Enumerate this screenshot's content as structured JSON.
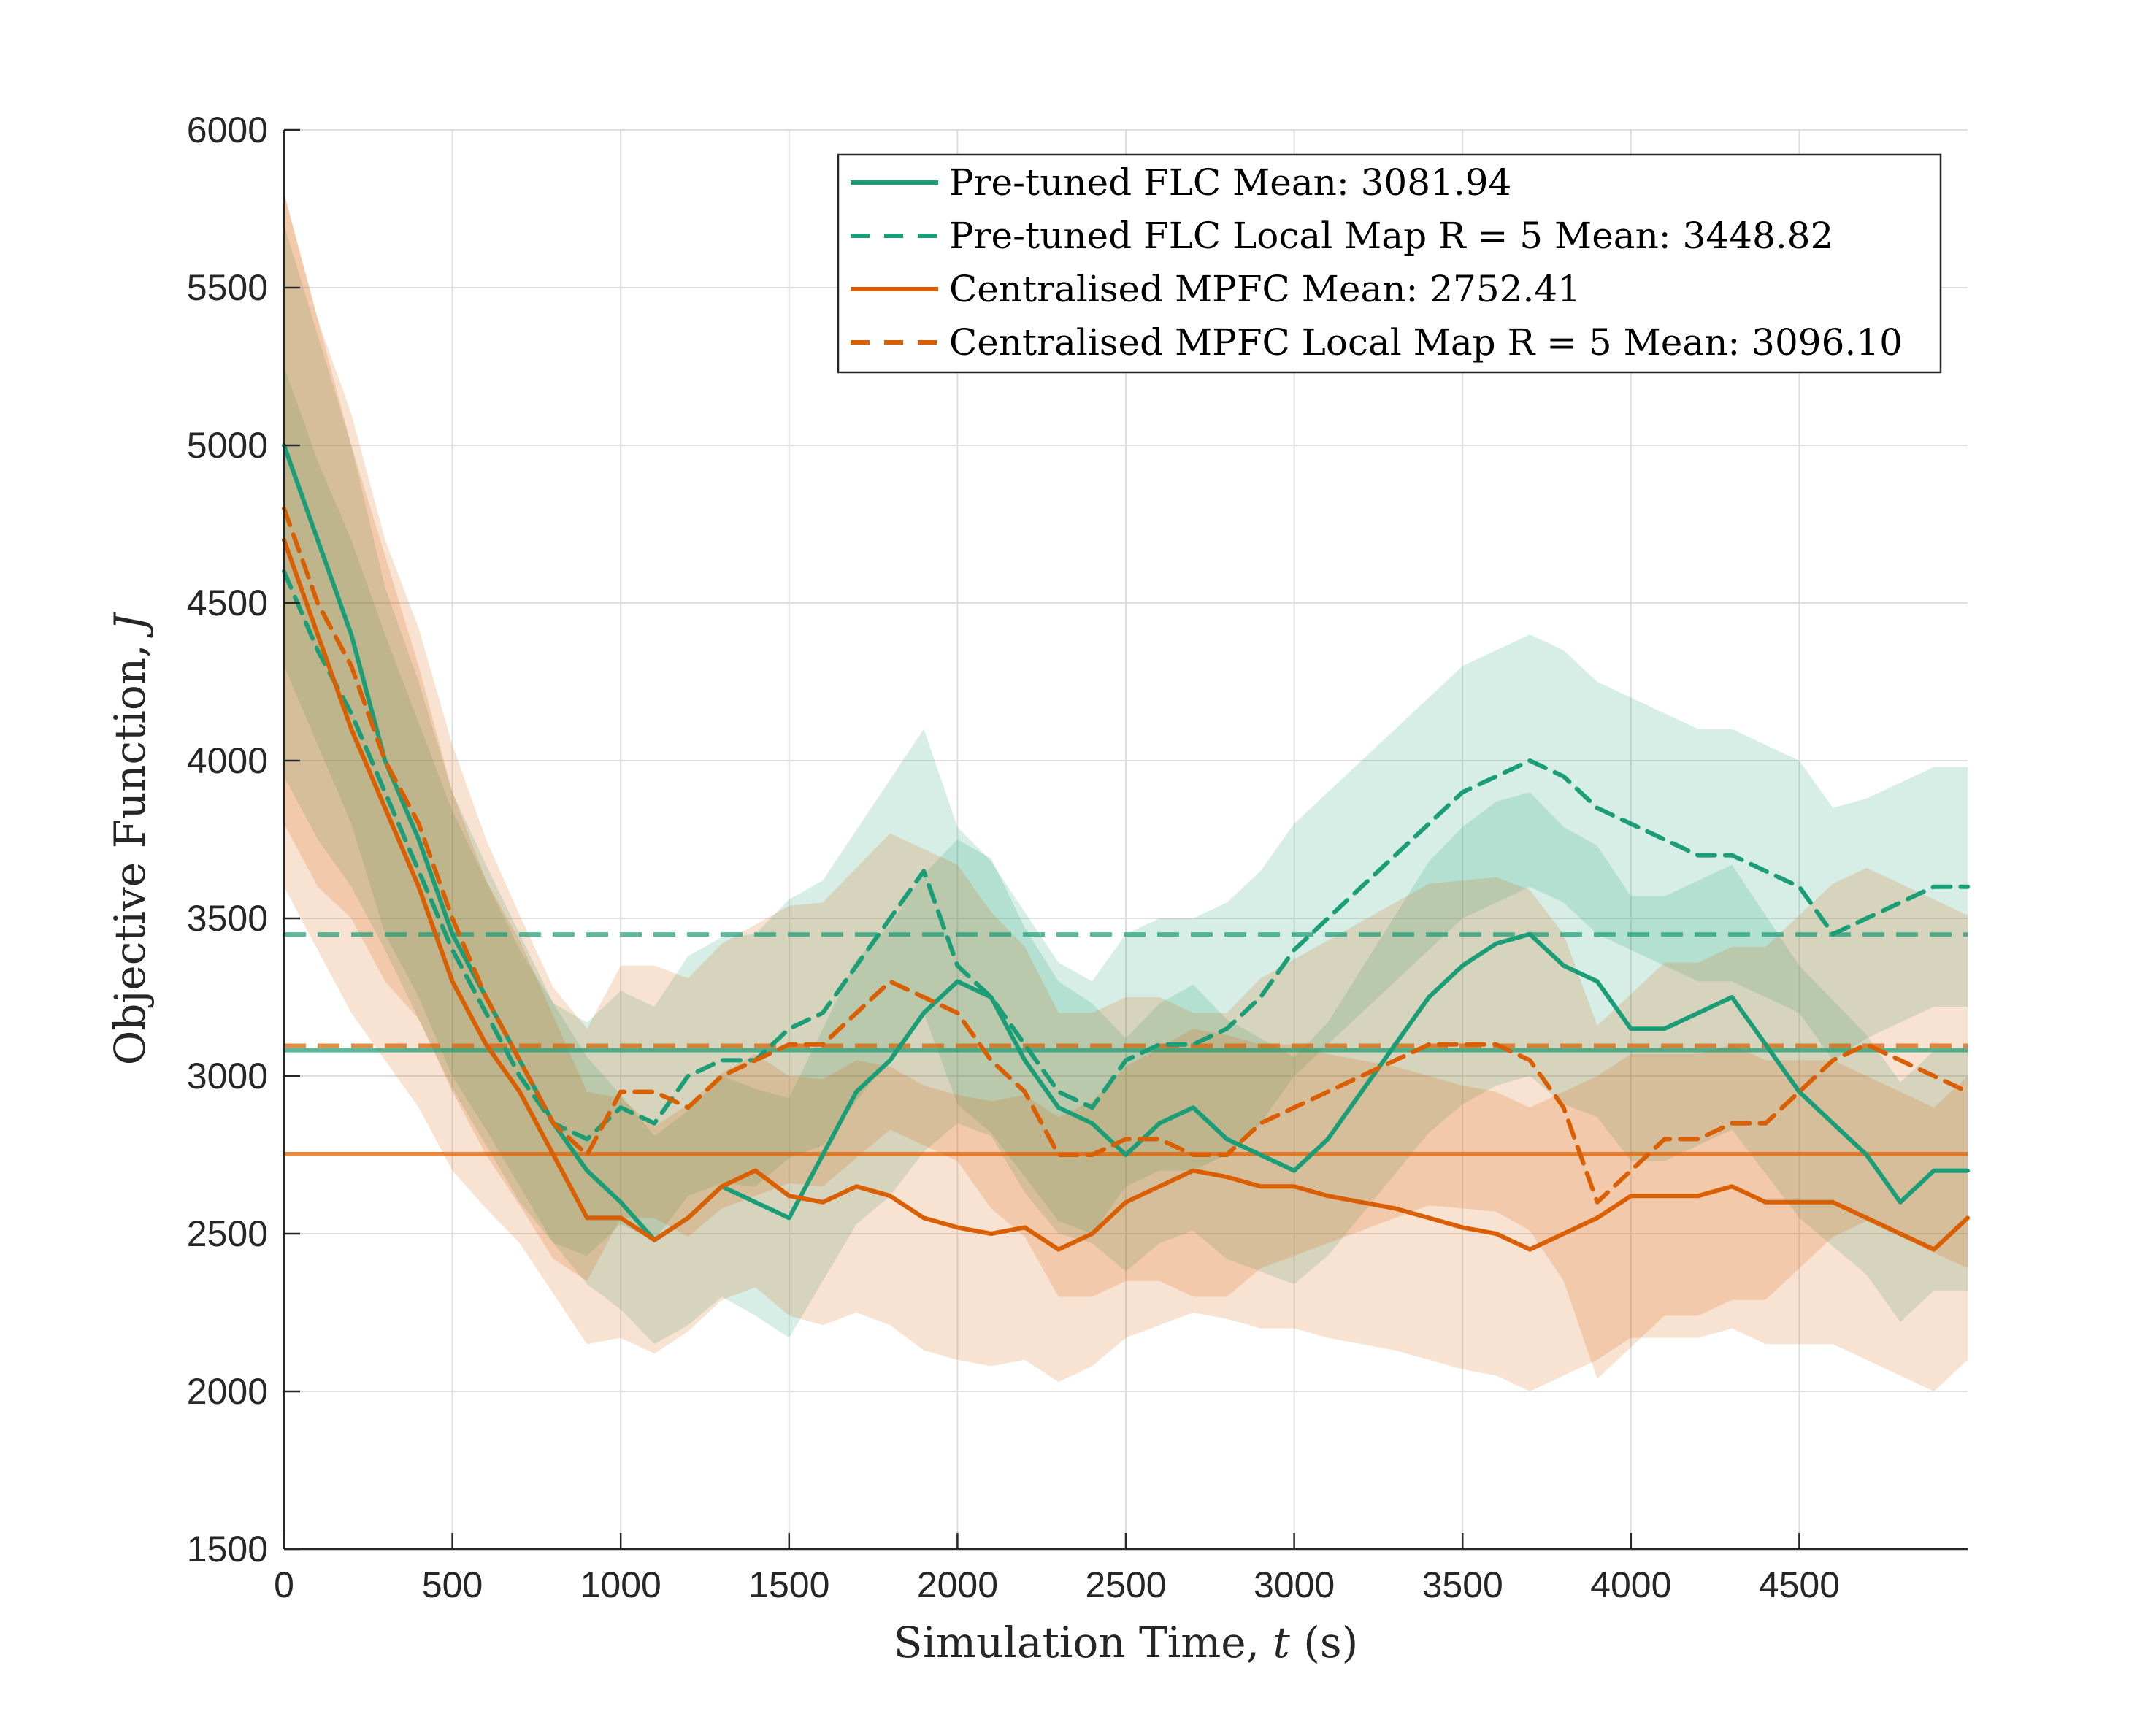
{
  "colors": {
    "flc": "#1b9e77",
    "mpfc": "#d95f02",
    "grid": "#dedede",
    "axis": "#262626"
  },
  "chart_data": {
    "type": "line",
    "xlabel": "Simulation Time, ",
    "xlabel_var": "t",
    "xlabel_unit": " (s)",
    "ylabel": "Objective Function, ",
    "ylabel_var": "J",
    "xlim": [
      0,
      5000
    ],
    "ylim": [
      1500,
      6000
    ],
    "xticks": [
      0,
      500,
      1000,
      1500,
      2000,
      2500,
      3000,
      3500,
      4000,
      4500
    ],
    "yticks": [
      1500,
      2000,
      2500,
      3000,
      3500,
      4000,
      4500,
      5000,
      5500,
      6000
    ],
    "grid": true,
    "legend_position": "top-right",
    "series": [
      {
        "name": "Pre-tuned FLC Mean: 3081.94",
        "color": "flc",
        "style": "solid",
        "mean": 3081.94,
        "x": [
          0,
          100,
          200,
          300,
          400,
          500,
          600,
          700,
          800,
          900,
          1000,
          1100,
          1200,
          1300,
          1400,
          1500,
          1600,
          1700,
          1800,
          1900,
          2000,
          2100,
          2200,
          2300,
          2400,
          2500,
          2600,
          2700,
          2800,
          2900,
          3000,
          3100,
          3200,
          3300,
          3400,
          3500,
          3600,
          3700,
          3800,
          3900,
          4000,
          4100,
          4200,
          4300,
          4400,
          4500,
          4600,
          4700,
          4800,
          4900,
          5000
        ],
        "values": [
          5000,
          4700,
          4400,
          4000,
          3750,
          3450,
          3250,
          3050,
          2850,
          2700,
          2600,
          2480,
          2550,
          2650,
          2600,
          2550,
          2750,
          2950,
          3050,
          3200,
          3300,
          3250,
          3050,
          2900,
          2850,
          2750,
          2850,
          2900,
          2800,
          2750,
          2700,
          2800,
          2950,
          3100,
          3250,
          3350,
          3420,
          3450,
          3350,
          3300,
          3150,
          3150,
          3200,
          3250,
          3100,
          2950,
          2850,
          2750,
          2600,
          2700,
          2700
        ],
        "band": [
          700,
          650,
          600,
          550,
          500,
          450,
          420,
          400,
          380,
          360,
          340,
          330,
          340,
          350,
          360,
          380,
          400,
          420,
          430,
          440,
          450,
          440,
          420,
          400,
          380,
          370,
          380,
          390,
          380,
          370,
          360,
          370,
          390,
          410,
          430,
          440,
          450,
          450,
          440,
          430,
          420,
          420,
          420,
          420,
          410,
          400,
          390,
          380,
          380,
          380,
          380
        ]
      },
      {
        "name": "Pre-tuned FLC Local Map R = 5 Mean: 3448.82",
        "color": "flc",
        "style": "dashed",
        "mean": 3448.82,
        "x": [
          0,
          100,
          200,
          300,
          400,
          500,
          600,
          700,
          800,
          900,
          1000,
          1100,
          1200,
          1300,
          1400,
          1500,
          1600,
          1700,
          1800,
          1900,
          2000,
          2100,
          2200,
          2300,
          2400,
          2500,
          2600,
          2700,
          2800,
          2900,
          3000,
          3100,
          3200,
          3300,
          3400,
          3500,
          3600,
          3700,
          3800,
          3900,
          4000,
          4100,
          4200,
          4300,
          4400,
          4500,
          4600,
          4700,
          4800,
          4900,
          5000
        ],
        "values": [
          4600,
          4350,
          4150,
          3900,
          3650,
          3400,
          3200,
          3000,
          2850,
          2800,
          2900,
          2850,
          3000,
          3050,
          3050,
          3150,
          3200,
          3350,
          3500,
          3650,
          3350,
          3250,
          3100,
          2950,
          2900,
          3050,
          3100,
          3100,
          3150,
          3250,
          3400,
          3500,
          3600,
          3700,
          3800,
          3900,
          3950,
          4000,
          3950,
          3850,
          3800,
          3750,
          3700,
          3700,
          3650,
          3600,
          3450,
          3500,
          3550,
          3600,
          3600
        ],
        "band": [
          650,
          600,
          550,
          500,
          470,
          440,
          420,
          400,
          380,
          370,
          370,
          370,
          380,
          390,
          400,
          410,
          420,
          430,
          440,
          450,
          440,
          430,
          420,
          410,
          400,
          400,
          400,
          400,
          400,
          400,
          400,
          400,
          400,
          400,
          400,
          400,
          400,
          400,
          400,
          400,
          400,
          400,
          400,
          400,
          400,
          400,
          400,
          380,
          380,
          380,
          380
        ]
      },
      {
        "name": "Centralised MPFC Mean: 2752.41",
        "color": "mpfc",
        "style": "solid",
        "mean": 2752.41,
        "x": [
          0,
          100,
          200,
          300,
          400,
          500,
          600,
          700,
          800,
          900,
          1000,
          1100,
          1200,
          1300,
          1400,
          1500,
          1600,
          1700,
          1800,
          1900,
          2000,
          2100,
          2200,
          2300,
          2400,
          2500,
          2600,
          2700,
          2800,
          2900,
          3000,
          3100,
          3200,
          3300,
          3400,
          3500,
          3600,
          3700,
          3800,
          3900,
          4000,
          4100,
          4200,
          4300,
          4400,
          4500,
          4600,
          4700,
          4800,
          4900,
          5000
        ],
        "values": [
          4700,
          4400,
          4100,
          3850,
          3600,
          3300,
          3100,
          2950,
          2750,
          2550,
          2550,
          2480,
          2550,
          2650,
          2700,
          2620,
          2600,
          2650,
          2620,
          2550,
          2520,
          2500,
          2520,
          2450,
          2500,
          2600,
          2650,
          2700,
          2680,
          2650,
          2650,
          2620,
          2600,
          2580,
          2550,
          2520,
          2500,
          2450,
          2500,
          2550,
          2620,
          2620,
          2620,
          2650,
          2600,
          2600,
          2600,
          2550,
          2500,
          2450,
          2550
        ],
        "band": [
          1100,
          1000,
          900,
          800,
          700,
          600,
          520,
          480,
          440,
          400,
          380,
          360,
          360,
          360,
          370,
          380,
          390,
          400,
          410,
          420,
          420,
          420,
          420,
          420,
          420,
          430,
          440,
          450,
          450,
          450,
          450,
          450,
          450,
          450,
          450,
          450,
          450,
          450,
          450,
          450,
          450,
          450,
          450,
          450,
          450,
          450,
          450,
          450,
          450,
          450,
          450
        ]
      },
      {
        "name": "Centralised MPFC Local Map R = 5 Mean: 3096.10",
        "color": "mpfc",
        "style": "dashed",
        "mean": 3096.1,
        "x": [
          0,
          100,
          200,
          300,
          400,
          500,
          600,
          700,
          800,
          900,
          1000,
          1100,
          1200,
          1300,
          1400,
          1500,
          1600,
          1700,
          1800,
          1900,
          2000,
          2100,
          2200,
          2300,
          2400,
          2500,
          2600,
          2700,
          2800,
          2900,
          3000,
          3100,
          3200,
          3300,
          3400,
          3500,
          3600,
          3700,
          3800,
          3900,
          4000,
          4100,
          4200,
          4300,
          4400,
          4500,
          4600,
          4700,
          4800,
          4900,
          5000
        ],
        "values": [
          4800,
          4500,
          4300,
          4000,
          3800,
          3500,
          3250,
          3050,
          2850,
          2750,
          2950,
          2950,
          2900,
          3000,
          3050,
          3100,
          3100,
          3200,
          3300,
          3250,
          3200,
          3050,
          2950,
          2750,
          2750,
          2800,
          2800,
          2750,
          2750,
          2850,
          2900,
          2950,
          3000,
          3050,
          3100,
          3100,
          3100,
          3050,
          2900,
          2600,
          2700,
          2800,
          2800,
          2850,
          2850,
          2950,
          3050,
          3100,
          3050,
          3000,
          2950
        ],
        "band": [
          1000,
          900,
          800,
          700,
          620,
          550,
          500,
          460,
          430,
          400,
          400,
          400,
          410,
          420,
          430,
          440,
          450,
          460,
          470,
          470,
          470,
          470,
          460,
          450,
          450,
          450,
          450,
          450,
          450,
          460,
          470,
          480,
          490,
          500,
          510,
          520,
          530,
          540,
          550,
          560,
          560,
          560,
          560,
          560,
          560,
          560,
          560,
          560,
          560,
          560,
          560
        ]
      }
    ]
  }
}
